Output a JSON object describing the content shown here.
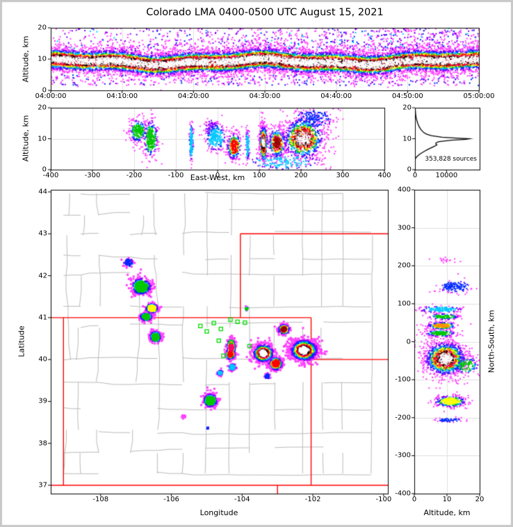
{
  "title": "Colorado LMA 0400-0500 UTC August 15, 2021",
  "colors": {
    "colormap": [
      "#FF40FF",
      "#8000FF",
      "#0028FF",
      "#00C8FF",
      "#00C800",
      "#FFFF00",
      "#FF9000",
      "#FF0000",
      "#FF0078",
      "#960000",
      "#000000",
      "#A8A8A8",
      "#FFFFFF"
    ],
    "state_line": "#FF0000",
    "county_line": "#BBBBBB",
    "station": "#00DC00",
    "grid": "#DFDFDF",
    "curve": "#000000",
    "frame": "#000000",
    "outer_border": "#C8C8C8",
    "background": "#FFFFFF"
  },
  "chart_data": [
    {
      "id": "time_height",
      "type": "scatter-density",
      "ylabel": "Altitude, km",
      "x_tick_labels": [
        "04:00:00",
        "04:10:00",
        "04:20:00",
        "04:30:00",
        "04:40:00",
        "04:50:00",
        "05:00:00"
      ],
      "y_ticks": [
        0,
        10,
        20
      ],
      "ylim": [
        0,
        20
      ],
      "band": {
        "alt_center_km": 9.1,
        "alt_sigma_km": 2.05,
        "n_points": 15000,
        "n_sparse_upper": 1600,
        "n_sparse_lower": 380
      }
    },
    {
      "id": "ew_height",
      "type": "scatter-density",
      "xlabel": "East-West, km",
      "ylabel": "Altitude, km",
      "xlim": [
        -400,
        400
      ],
      "ylim": [
        0,
        20
      ],
      "x_ticks": [
        -400,
        -300,
        -200,
        -100,
        0,
        100,
        200,
        300,
        400
      ],
      "y_ticks": [
        0,
        10,
        20
      ],
      "clusters": [
        [
          -190,
          12.5,
          11,
          2.0,
          220,
          4
        ],
        [
          -160,
          10,
          9,
          3.2,
          280,
          4
        ],
        [
          -63,
          9,
          2.6,
          3.4,
          140,
          3
        ],
        [
          -5,
          10.5,
          13,
          2.4,
          240,
          3
        ],
        [
          -15,
          13.5,
          8,
          1.5,
          60,
          1
        ],
        [
          40,
          7.5,
          9,
          2.3,
          300,
          7
        ],
        [
          72,
          8,
          2.2,
          2.8,
          100,
          3
        ],
        [
          110,
          8.5,
          5,
          3.1,
          500,
          12
        ],
        [
          143,
          8.5,
          11,
          2.6,
          380,
          9
        ],
        [
          205,
          10,
          26,
          3.6,
          1000,
          12
        ],
        [
          230,
          16.5,
          24,
          1.8,
          170,
          2
        ],
        [
          160,
          2.5,
          48,
          1.4,
          160,
          3
        ]
      ]
    },
    {
      "id": "source_histogram",
      "type": "line",
      "x_ticks": [
        0,
        10000
      ],
      "xlim": [
        0,
        20500
      ],
      "ylim": [
        0,
        20
      ],
      "y_ticks": [
        0,
        10,
        20
      ],
      "annotation": "353,828 sources",
      "curve_alt_count": [
        [
          20,
          60
        ],
        [
          18,
          200
        ],
        [
          17,
          330
        ],
        [
          16,
          560
        ],
        [
          15,
          860
        ],
        [
          14,
          1250
        ],
        [
          13,
          1850
        ],
        [
          12,
          2750
        ],
        [
          11.5,
          3600
        ],
        [
          11,
          5200
        ],
        [
          10.5,
          8600
        ],
        [
          10.2,
          13200
        ],
        [
          10,
          17300
        ],
        [
          9.8,
          16200
        ],
        [
          9.5,
          11600
        ],
        [
          9.2,
          8700
        ],
        [
          9,
          7400
        ],
        [
          8.6,
          6600
        ],
        [
          8.2,
          6700
        ],
        [
          8,
          6950
        ],
        [
          7.8,
          6600
        ],
        [
          7.5,
          6050
        ],
        [
          7,
          5000
        ],
        [
          6.5,
          4000
        ],
        [
          6,
          3100
        ],
        [
          5.5,
          2300
        ],
        [
          5,
          1500
        ],
        [
          4.5,
          900
        ],
        [
          4,
          430
        ],
        [
          3.7,
          230
        ],
        [
          3.4,
          90
        ]
      ]
    },
    {
      "id": "map",
      "type": "scatter-density",
      "xlabel": "Longitude",
      "ylabel": "Latitude",
      "xlim": [
        -109.41,
        -99.88
      ],
      "ylim": [
        36.8,
        44.05
      ],
      "x_ticks": [
        -108,
        -106,
        -104,
        -102,
        -100
      ],
      "y_ticks": [
        37,
        38,
        39,
        40,
        41,
        42,
        43,
        44
      ],
      "state_border_segments": [
        [
          [
            -109.41,
            41
          ],
          [
            -102.05,
            41
          ]
        ],
        [
          [
            -109.05,
            41
          ],
          [
            -109.05,
            37
          ]
        ],
        [
          [
            -109.41,
            37
          ],
          [
            -99.88,
            37
          ]
        ],
        [
          [
            -102.05,
            41
          ],
          [
            -102.05,
            37
          ]
        ],
        [
          [
            -104.05,
            43
          ],
          [
            -104.05,
            41
          ]
        ],
        [
          [
            -104.05,
            43
          ],
          [
            -99.88,
            43
          ]
        ],
        [
          [
            -102.05,
            40
          ],
          [
            -99.88,
            40
          ]
        ],
        [
          [
            -103.0,
            37
          ],
          [
            -103.0,
            36.8
          ]
        ]
      ],
      "stations_lonlat": [
        [
          -105.0,
          40.67
        ],
        [
          -104.8,
          40.87
        ],
        [
          -104.6,
          40.73
        ],
        [
          -104.33,
          40.95
        ],
        [
          -104.13,
          40.9
        ],
        [
          -103.92,
          40.88
        ],
        [
          -104.31,
          40.42
        ],
        [
          -104.66,
          40.45
        ],
        [
          -104.53,
          40.09
        ],
        [
          -103.79,
          40.32
        ],
        [
          -105.18,
          40.8
        ]
      ],
      "clusters": [
        [
          -107.21,
          42.31,
          0.07,
          0.05,
          45,
          2
        ],
        [
          -106.85,
          41.74,
          0.14,
          0.1,
          380,
          4
        ],
        [
          -106.55,
          41.22,
          0.09,
          0.06,
          240,
          5
        ],
        [
          -106.72,
          41.02,
          0.09,
          0.05,
          190,
          4
        ],
        [
          -106.45,
          40.54,
          0.08,
          0.07,
          210,
          4
        ],
        [
          -103.87,
          41.21,
          0.025,
          0.02,
          12,
          4
        ],
        [
          -104.31,
          40.3,
          0.06,
          0.1,
          280,
          8
        ],
        [
          -104.33,
          40.13,
          0.07,
          0.07,
          170,
          7
        ],
        [
          -104.28,
          39.82,
          0.05,
          0.04,
          70,
          3
        ],
        [
          -104.62,
          39.68,
          0.04,
          0.03,
          50,
          3
        ],
        [
          -103.4,
          40.15,
          0.15,
          0.11,
          700,
          12
        ],
        [
          -103.05,
          39.9,
          0.1,
          0.08,
          280,
          7
        ],
        [
          -102.82,
          40.72,
          0.08,
          0.06,
          220,
          9
        ],
        [
          -102.25,
          40.22,
          0.2,
          0.13,
          1000,
          12
        ],
        [
          -103.28,
          39.6,
          0.04,
          0.03,
          25,
          2
        ],
        [
          -104.9,
          39.02,
          0.1,
          0.08,
          320,
          4
        ],
        [
          -105.65,
          38.63,
          0.04,
          0.03,
          15,
          0
        ],
        [
          -104.98,
          38.36,
          0.015,
          0.015,
          6,
          2
        ]
      ]
    },
    {
      "id": "ns_height",
      "type": "scatter-density",
      "xlabel": "Altitude, km",
      "ylabel": "North-South, km",
      "xlim": [
        0,
        20
      ],
      "ylim": [
        -400,
        400
      ],
      "x_ticks": [
        0,
        10,
        20
      ],
      "y_ticks": [
        400,
        300,
        200,
        100,
        0,
        -100,
        -200,
        -300,
        -400
      ],
      "clusters": [
        [
          9.5,
          -45,
          3.4,
          24,
          1300,
          12
        ],
        [
          16,
          -62,
          2.0,
          12,
          130,
          4
        ],
        [
          11,
          -157,
          2.6,
          8,
          280,
          5
        ],
        [
          10.5,
          -206,
          2.2,
          3,
          55,
          2
        ],
        [
          8.5,
          42,
          2.4,
          5,
          240,
          6
        ],
        [
          8,
          22,
          2.4,
          4.5,
          160,
          4
        ],
        [
          9,
          66,
          2.4,
          4,
          130,
          4
        ],
        [
          8,
          85,
          3.6,
          4.5,
          150,
          3
        ],
        [
          12.5,
          145,
          2.6,
          9,
          140,
          2
        ],
        [
          10,
          215,
          2.2,
          5,
          18,
          0
        ]
      ]
    }
  ]
}
